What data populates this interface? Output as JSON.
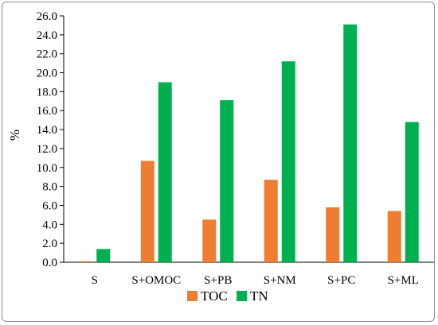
{
  "chart_data": {
    "type": "bar",
    "title": "",
    "xlabel": "",
    "ylabel": "%",
    "ylim": [
      0,
      26
    ],
    "yticks": [
      "0.0",
      "2.0",
      "4.0",
      "6.0",
      "8.0",
      "10.0",
      "12.0",
      "14.0",
      "16.0",
      "18.0",
      "20.0",
      "22.0",
      "24.0",
      "26.0"
    ],
    "categories": [
      "S",
      "S+OMOC",
      "S+PB",
      "S+NM",
      "S+PC",
      "S+ML"
    ],
    "series": [
      {
        "name": "TOC",
        "color": "#ed7d31",
        "values": [
          0.1,
          10.7,
          4.5,
          8.7,
          5.8,
          5.4
        ]
      },
      {
        "name": "TN",
        "color": "#00b050",
        "values": [
          1.4,
          19.0,
          17.1,
          21.2,
          25.1,
          14.8
        ]
      }
    ],
    "grid": false,
    "legend_position": "bottom"
  }
}
